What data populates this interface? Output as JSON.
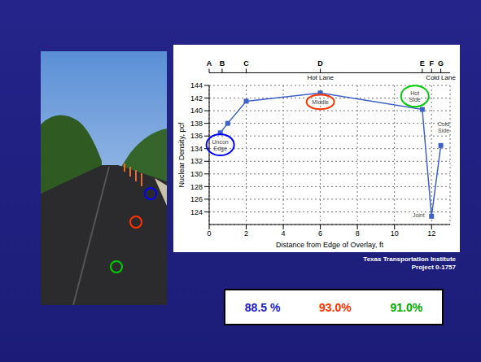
{
  "chart_data": {
    "type": "line",
    "x_label": "Distance from Edge of Overlay, ft",
    "y_label": "Nuclear Density, pcf",
    "x": [
      0.6,
      1,
      2,
      6,
      11.5,
      12,
      12.5
    ],
    "values": [
      136.5,
      138,
      141.5,
      142.8,
      140.2,
      123.3,
      134.5
    ],
    "color": "#3f62c8",
    "marker": "square",
    "line_style": "solid",
    "xlim": [
      0,
      13
    ],
    "xticks": [
      0,
      2,
      4,
      6,
      8,
      10,
      12
    ],
    "ylim": [
      122,
      144
    ],
    "yticks": [
      124,
      126,
      128,
      130,
      132,
      134,
      136,
      138,
      140,
      142,
      144
    ],
    "grid": true,
    "annotations": [
      {
        "text": "Uncon\nEdge",
        "x": 0.6,
        "y": 134.6,
        "color": "#0000ff"
      },
      {
        "text": "Middle",
        "x": 6,
        "y": 141.4,
        "color": "#ff3300"
      },
      {
        "text": "Hot\nSide",
        "x": 11.1,
        "y": 142.3,
        "color": "#00cc00"
      },
      {
        "text": "Joint",
        "x": 11.3,
        "y": 123.6
      },
      {
        "text": "Cold\nSide",
        "x": 12.65,
        "y": 137.5
      }
    ],
    "lane_markers": [
      {
        "label": "A",
        "x": 0
      },
      {
        "label": "B",
        "x": 0.7
      },
      {
        "label": "C",
        "x": 2
      },
      {
        "label": "D",
        "x": 6
      },
      {
        "label": "E",
        "x": 11.5
      },
      {
        "label": "F",
        "x": 12
      },
      {
        "label": "G",
        "x": 12.5
      }
    ],
    "lanes": [
      {
        "label": "Hot Lane",
        "from": 0,
        "to": 12
      },
      {
        "label": "Cold Lane",
        "from": 12,
        "to": 13
      }
    ]
  },
  "source": [
    "Texas Transportation Institute",
    "Project 0-1757"
  ],
  "percentages": [
    {
      "label": "88.5 %",
      "color": "#1a1acc"
    },
    {
      "label": "93.0%",
      "color": "#ff3300"
    },
    {
      "label": "91.0%",
      "color": "#00aa00"
    }
  ]
}
